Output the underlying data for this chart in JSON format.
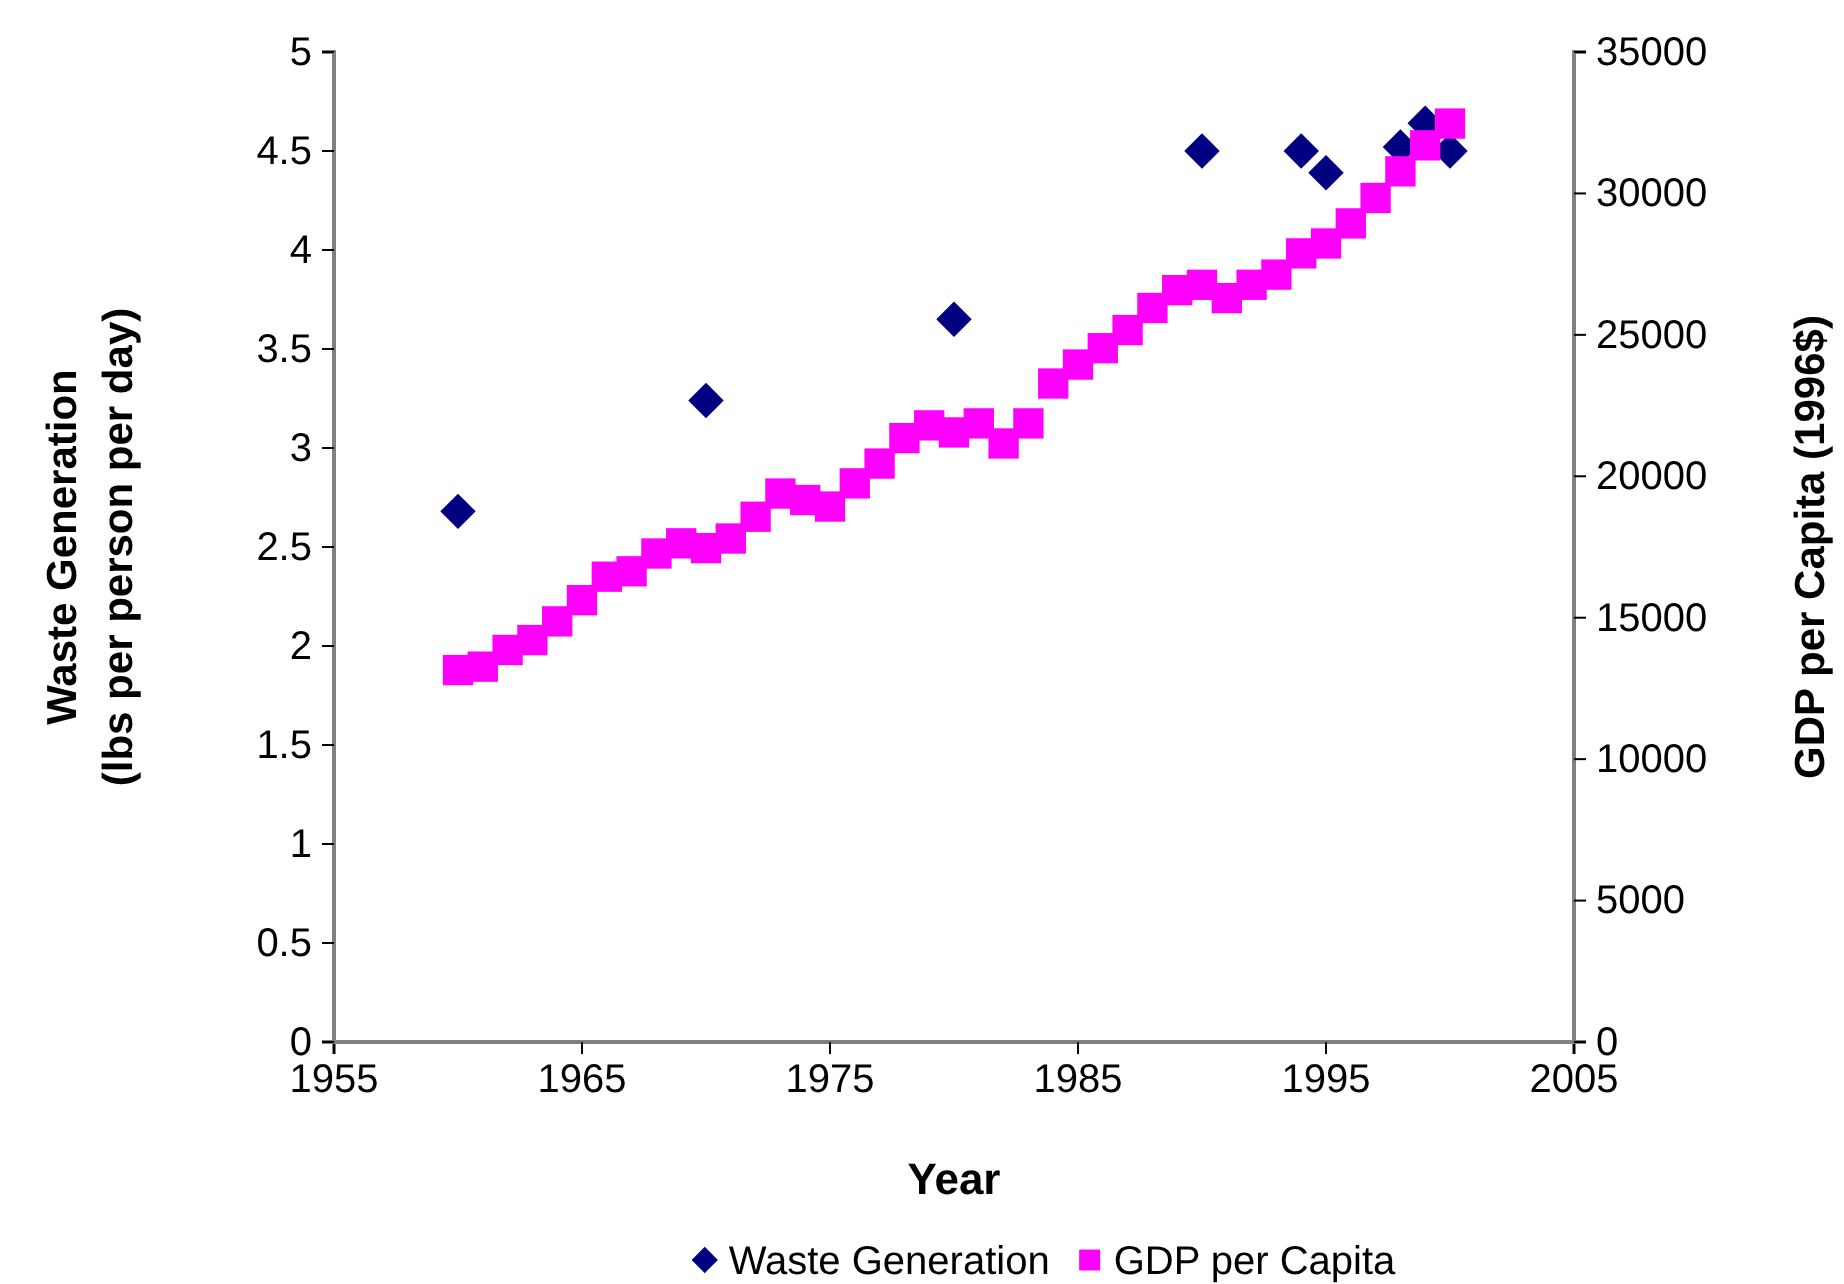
{
  "chart_data": {
    "type": "scatter",
    "xlabel": "Year",
    "ylabel": "Waste Generation\n(lbs per person per day)",
    "y2label": "GDP per Capita (1996$)",
    "xlim": [
      1955,
      2005
    ],
    "xticks": [
      1955,
      1965,
      1975,
      1985,
      1995,
      2005
    ],
    "ylim": [
      0,
      5
    ],
    "yticks": [
      0,
      0.5,
      1,
      1.5,
      2,
      2.5,
      3,
      3.5,
      4,
      4.5,
      5
    ],
    "y2lim": [
      0,
      35000
    ],
    "y2ticks": [
      0,
      5000,
      10000,
      15000,
      20000,
      25000,
      30000,
      35000
    ],
    "grid": false,
    "legend": "bottom",
    "series": [
      {
        "name": "Waste Generation",
        "color": "#000080",
        "marker": "diamond",
        "x": [
          1960,
          1970,
          1980,
          1990,
          1994,
          1995,
          1998,
          1999,
          2000
        ],
        "values": [
          2.68,
          3.24,
          3.65,
          4.5,
          4.5,
          4.39,
          4.52,
          4.64,
          4.5
        ]
      },
      {
        "name": "GDP per Capita",
        "color": "#ff00ff",
        "marker": "square",
        "axis": "y2",
        "x": [
          1960,
          1961,
          1962,
          1963,
          1964,
          1965,
          1966,
          1967,
          1968,
          1969,
          1970,
          1971,
          1972,
          1973,
          1974,
          1975,
          1976,
          1977,
          1978,
          1979,
          1980,
          1981,
          1982,
          1983,
          1984,
          1985,
          1986,
          1987,
          1988,
          1989,
          1990,
          1991,
          1992,
          1993,
          1994,
          1995,
          1996,
          1997,
          1998,
          1999,
          2000
        ],
        "values": [
          13150,
          13270,
          13860,
          14210,
          14870,
          15620,
          16450,
          16640,
          17270,
          17630,
          17460,
          17800,
          18570,
          19390,
          19160,
          18930,
          19750,
          20450,
          21350,
          21800,
          21550,
          21870,
          21160,
          21870,
          23280,
          23950,
          24530,
          25170,
          25950,
          26580,
          26770,
          26300,
          26770,
          27130,
          27880,
          28230,
          28940,
          29840,
          30780,
          31700,
          32470
        ]
      }
    ]
  }
}
